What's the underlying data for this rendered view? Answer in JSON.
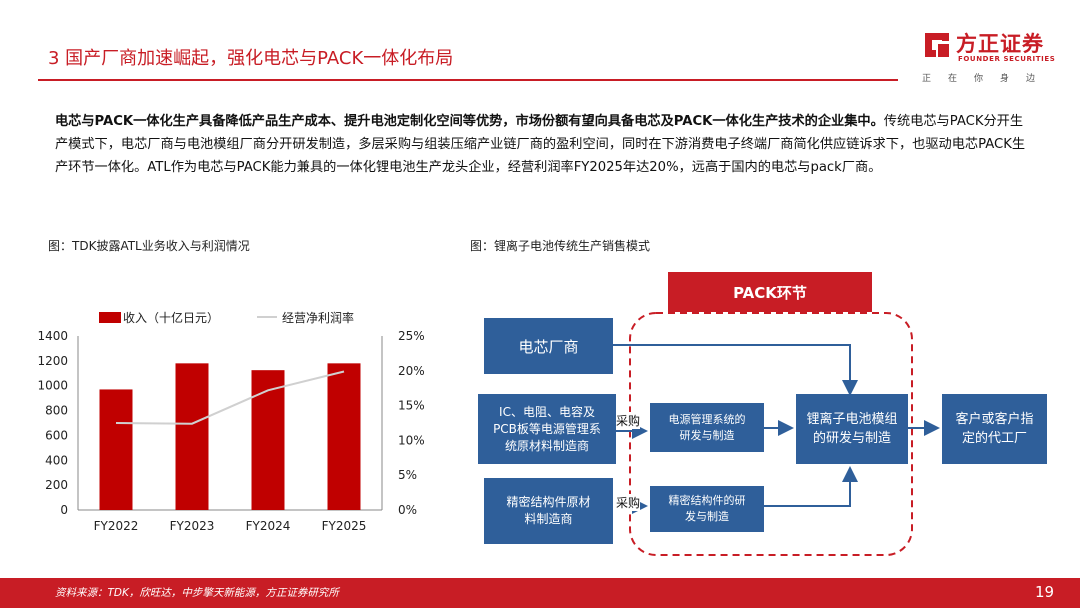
{
  "header": {
    "title": "3 国产厂商加速崛起，强化电芯与PACK一体化布局",
    "logo_cn": "方正证券",
    "logo_en": "FOUNDER SECURITIES",
    "slogan": "正在你身边"
  },
  "body": {
    "lead_bold": "电芯与PACK一体化生产具备降低产品生产成本、提升电池定制化空间等优势，市场份额有望向具备电芯及PACK一体化生产技术的企业集中。",
    "rest": "传统电芯与PACK分开生产模式下，电芯厂商与电池模组厂商分开研发制造，多层采购与组装压缩产业链厂商的盈利空间，同时在下游消费电子终端厂商简化供应链诉求下，也驱动电芯PACK生产环节一体化。ATL作为电芯与PACK能力兼具的一体化锂电池生产龙头企业，经营利润率FY2025年达20%，远高于国内的电芯与pack厂商。"
  },
  "left_caption": "图：TDK披露ATL业务收入与利润情况",
  "right_caption": "图：锂离子电池传统生产销售模式",
  "chart_data": {
    "type": "bar",
    "categories": [
      "FY2022",
      "FY2023",
      "FY2024",
      "FY2025"
    ],
    "series": [
      {
        "name": "收入（十亿日元）",
        "type": "bar",
        "axis": "left",
        "color": "#c00000",
        "values": [
          970,
          1180,
          1125,
          1180
        ]
      },
      {
        "name": "经营净利润率",
        "type": "line",
        "axis": "right",
        "color": "#d0d0d0",
        "values": [
          0.125,
          0.124,
          0.172,
          0.199
        ]
      }
    ],
    "y_left": {
      "min": 0,
      "max": 1400,
      "ticks": [
        "0",
        "200",
        "400",
        "600",
        "800",
        "1000",
        "1200",
        "1400"
      ]
    },
    "y_right": {
      "min": 0,
      "max": 0.25,
      "ticks": [
        "0%",
        "5%",
        "10%",
        "15%",
        "20%",
        "25%"
      ]
    },
    "legend_position": "top"
  },
  "diagram": {
    "pack_label": "PACK环节",
    "cell_maker": "电芯厂商",
    "ic_supplier": "IC、电阻、电容及PCB板等电源管理系统原材料制造商",
    "struct_supplier": "精密结构件原材料制造商",
    "purchase_1": "采购",
    "purchase_2": "采购",
    "bms_rd": "电源管理系统的研发与制造",
    "struct_rd": "精密结构件的研发与制造",
    "module_rd": "锂离子电池模组的研发与制造",
    "customer": "客户或客户指定的代工厂",
    "box_color": "#2f5f9a",
    "accent_color": "#c81d25"
  },
  "footer": {
    "source": "资料来源：TDK，欣旺达，中步擎天新能源，方正证券研究所",
    "page": "19"
  }
}
